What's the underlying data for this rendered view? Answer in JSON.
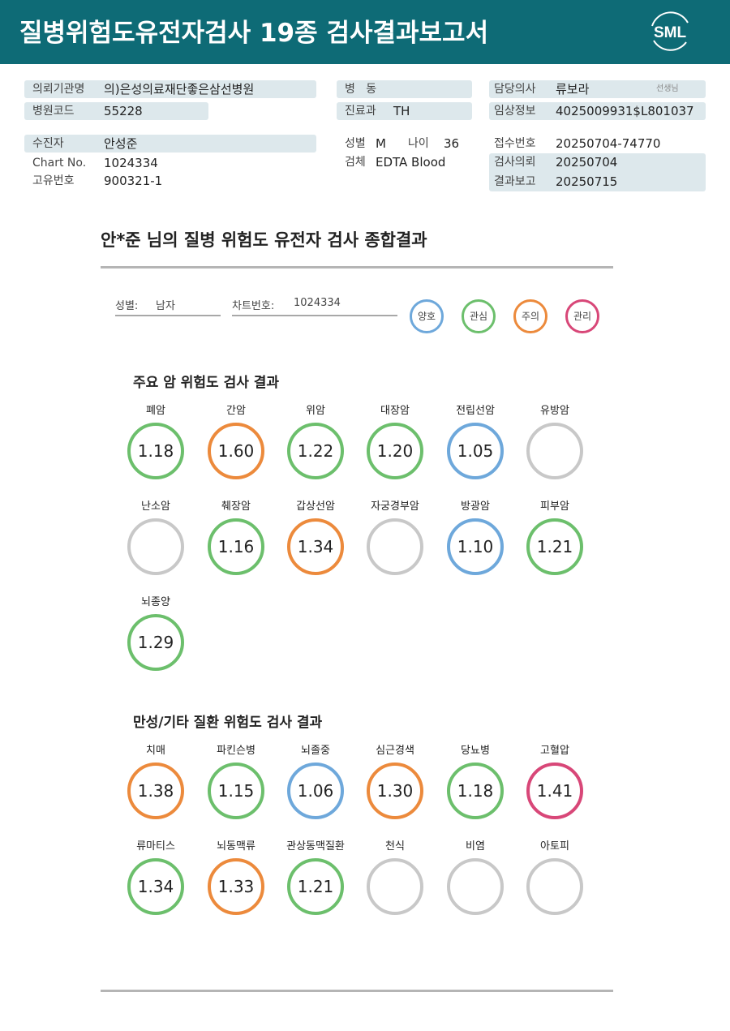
{
  "header": {
    "title": "질병위험도유전자검사 19종 검사결과보고서",
    "logo_text": "SML"
  },
  "info": {
    "institution_label": "의뢰기관명",
    "institution_value": "의)은성의료재단좋은삼선병원",
    "hospital_code_label": "병원코드",
    "hospital_code_value": "55228",
    "ward_label": "병   동",
    "ward_value": "",
    "dept_label": "진료과",
    "dept_value": "TH",
    "doctor_label": "담당의사",
    "doctor_value": "류보라",
    "doctor_suffix": "선생님",
    "clinical_label": "임상정보",
    "clinical_value": "4025009931$L801037",
    "patient_label": "수진자",
    "patient_value": "안성준",
    "chart_label": "Chart No.",
    "chart_value": "1024334",
    "unique_label": "고유번호",
    "unique_value": "900321-1",
    "sex_label": "성별",
    "sex_value": "M",
    "age_label": "나이",
    "age_value": "36",
    "specimen_label": "검체",
    "specimen_value": "EDTA Blood",
    "receipt_label": "접수번호",
    "receipt_value": "20250704-74770",
    "request_label": "검사의뢰",
    "request_value": "20250704",
    "report_label": "결과보고",
    "report_value": "20250715"
  },
  "summary": {
    "title": "안*준 님의 질병 위험도 유전자 검사 종합결과",
    "sex_label": "성별:",
    "sex_value": "남자",
    "chart_label": "차트번호:",
    "chart_value": "1024334"
  },
  "legend": [
    {
      "label": "양호",
      "color": "#6ea8db"
    },
    {
      "label": "관심",
      "color": "#6cbf6c"
    },
    {
      "label": "주의",
      "color": "#ec8a3c"
    },
    {
      "label": "관리",
      "color": "#d84778"
    }
  ],
  "cancer": {
    "title": "주요 암 위험도 검사 결과",
    "items": [
      {
        "name": "폐암",
        "value": "1.18",
        "level": "green"
      },
      {
        "name": "간암",
        "value": "1.60",
        "level": "orange"
      },
      {
        "name": "위암",
        "value": "1.22",
        "level": "green"
      },
      {
        "name": "대장암",
        "value": "1.20",
        "level": "green"
      },
      {
        "name": "전립선암",
        "value": "1.05",
        "level": "blue"
      },
      {
        "name": "유방암",
        "value": "",
        "level": "gray"
      },
      {
        "name": "난소암",
        "value": "",
        "level": "gray"
      },
      {
        "name": "췌장암",
        "value": "1.16",
        "level": "green"
      },
      {
        "name": "갑상선암",
        "value": "1.34",
        "level": "orange"
      },
      {
        "name": "자궁경부암",
        "value": "",
        "level": "gray"
      },
      {
        "name": "방광암",
        "value": "1.10",
        "level": "blue"
      },
      {
        "name": "피부암",
        "value": "1.21",
        "level": "green"
      },
      {
        "name": "뇌종양",
        "value": "1.29",
        "level": "green"
      }
    ]
  },
  "chronic": {
    "title": "만성/기타 질환 위험도 검사 결과",
    "items": [
      {
        "name": "치매",
        "value": "1.38",
        "level": "orange"
      },
      {
        "name": "파킨슨병",
        "value": "1.15",
        "level": "green"
      },
      {
        "name": "뇌졸중",
        "value": "1.06",
        "level": "blue"
      },
      {
        "name": "심근경색",
        "value": "1.30",
        "level": "orange"
      },
      {
        "name": "당뇨병",
        "value": "1.18",
        "level": "green"
      },
      {
        "name": "고혈압",
        "value": "1.41",
        "level": "red"
      },
      {
        "name": "류마티스",
        "value": "1.34",
        "level": "green"
      },
      {
        "name": "뇌동맥류",
        "value": "1.33",
        "level": "orange"
      },
      {
        "name": "관상동맥질환",
        "value": "1.21",
        "level": "green"
      },
      {
        "name": "천식",
        "value": "",
        "level": "gray"
      },
      {
        "name": "비염",
        "value": "",
        "level": "gray"
      },
      {
        "name": "아토피",
        "value": "",
        "level": "gray"
      }
    ]
  }
}
